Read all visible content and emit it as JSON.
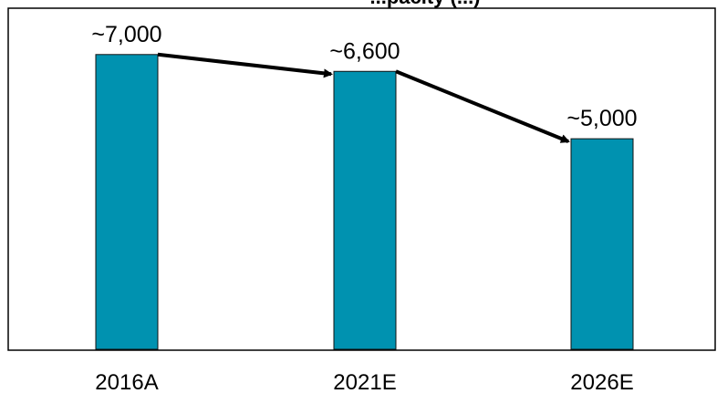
{
  "chart_data": {
    "type": "bar",
    "title": "~ ... (capacity) (... )",
    "title_visible_fragment": "...pacity (...)",
    "categories": [
      "2016A",
      "2021E",
      "2026E"
    ],
    "values": [
      7000,
      6600,
      5000
    ],
    "data_labels": [
      "~7,000",
      "~6,600",
      "~5,000"
    ],
    "ylim": [
      0,
      8100
    ],
    "xlabel": "",
    "ylabel": "",
    "grid": false,
    "legend": "none",
    "colors": {
      "bar": "#0092B0",
      "bar_edge": "#111111",
      "arrow": "#000000"
    },
    "trend_arrows": true
  }
}
